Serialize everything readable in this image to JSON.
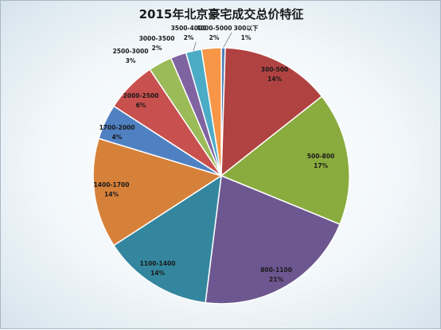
{
  "chart_data": {
    "type": "pie",
    "title": "2015年北京豪宅成交总价特征",
    "slices": [
      {
        "label": "300以下",
        "pct_label": "1%",
        "value": 0.5,
        "color": "#4e7db8"
      },
      {
        "label": "300-500",
        "pct_label": "14%",
        "value": 14,
        "color": "#b04341"
      },
      {
        "label": "500-800",
        "pct_label": "17%",
        "value": 17,
        "color": "#8aab3e"
      },
      {
        "label": "800-1100",
        "pct_label": "21%",
        "value": 21,
        "color": "#6d5790"
      },
      {
        "label": "1100-1400",
        "pct_label": "14%",
        "value": 14,
        "color": "#33869e"
      },
      {
        "label": "1400-1700",
        "pct_label": "14%",
        "value": 14,
        "color": "#d6813a"
      },
      {
        "label": "1700-2000",
        "pct_label": "4%",
        "value": 4.5,
        "color": "#4f81c2"
      },
      {
        "label": "2000-2500",
        "pct_label": "6%",
        "value": 6.5,
        "color": "#c8504e"
      },
      {
        "label": "2500-3000",
        "pct_label": "3%",
        "value": 3,
        "color": "#9bbb59"
      },
      {
        "label": "3000-3500",
        "pct_label": "2%",
        "value": 2,
        "color": "#8064a2"
      },
      {
        "label": "3500-4000",
        "pct_label": "2%",
        "value": 2,
        "color": "#4bacc6"
      },
      {
        "label": "4000-5000",
        "pct_label": "2%",
        "value": 2.5,
        "color": "#f79646"
      }
    ]
  }
}
